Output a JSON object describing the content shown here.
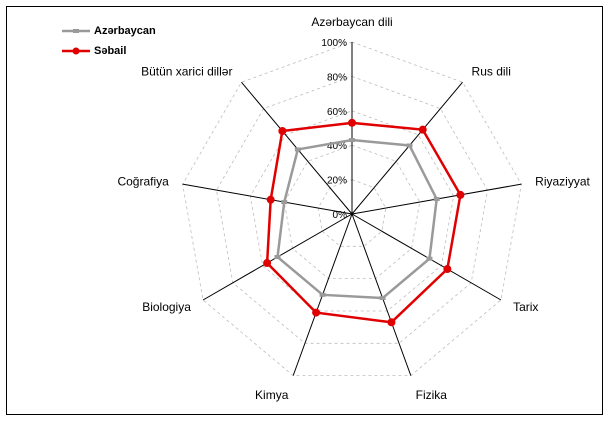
{
  "chart_data": {
    "type": "radar",
    "axes": [
      "Azərbaycan dili",
      "Rus dili",
      "Riyaziyyat",
      "Tarix",
      "Fizika",
      "Kimya",
      "Biologiya",
      "Coğrafiya",
      "Bütün xarici dillər"
    ],
    "ticks": [
      "0%",
      "20%",
      "40%",
      "60%",
      "80%",
      "100%"
    ],
    "rmax": 100,
    "grid": true,
    "legend_position": "top-left",
    "series": [
      {
        "name": "Azərbaycan",
        "color": "#9a9a9a",
        "marker": "dash",
        "values": [
          43,
          52,
          50,
          52,
          52,
          50,
          50,
          40,
          49
        ]
      },
      {
        "name": "Səbail",
        "color": "#e00000",
        "marker": "circle",
        "values": [
          53,
          64,
          64,
          64,
          67,
          61,
          57,
          48,
          63
        ]
      }
    ]
  }
}
